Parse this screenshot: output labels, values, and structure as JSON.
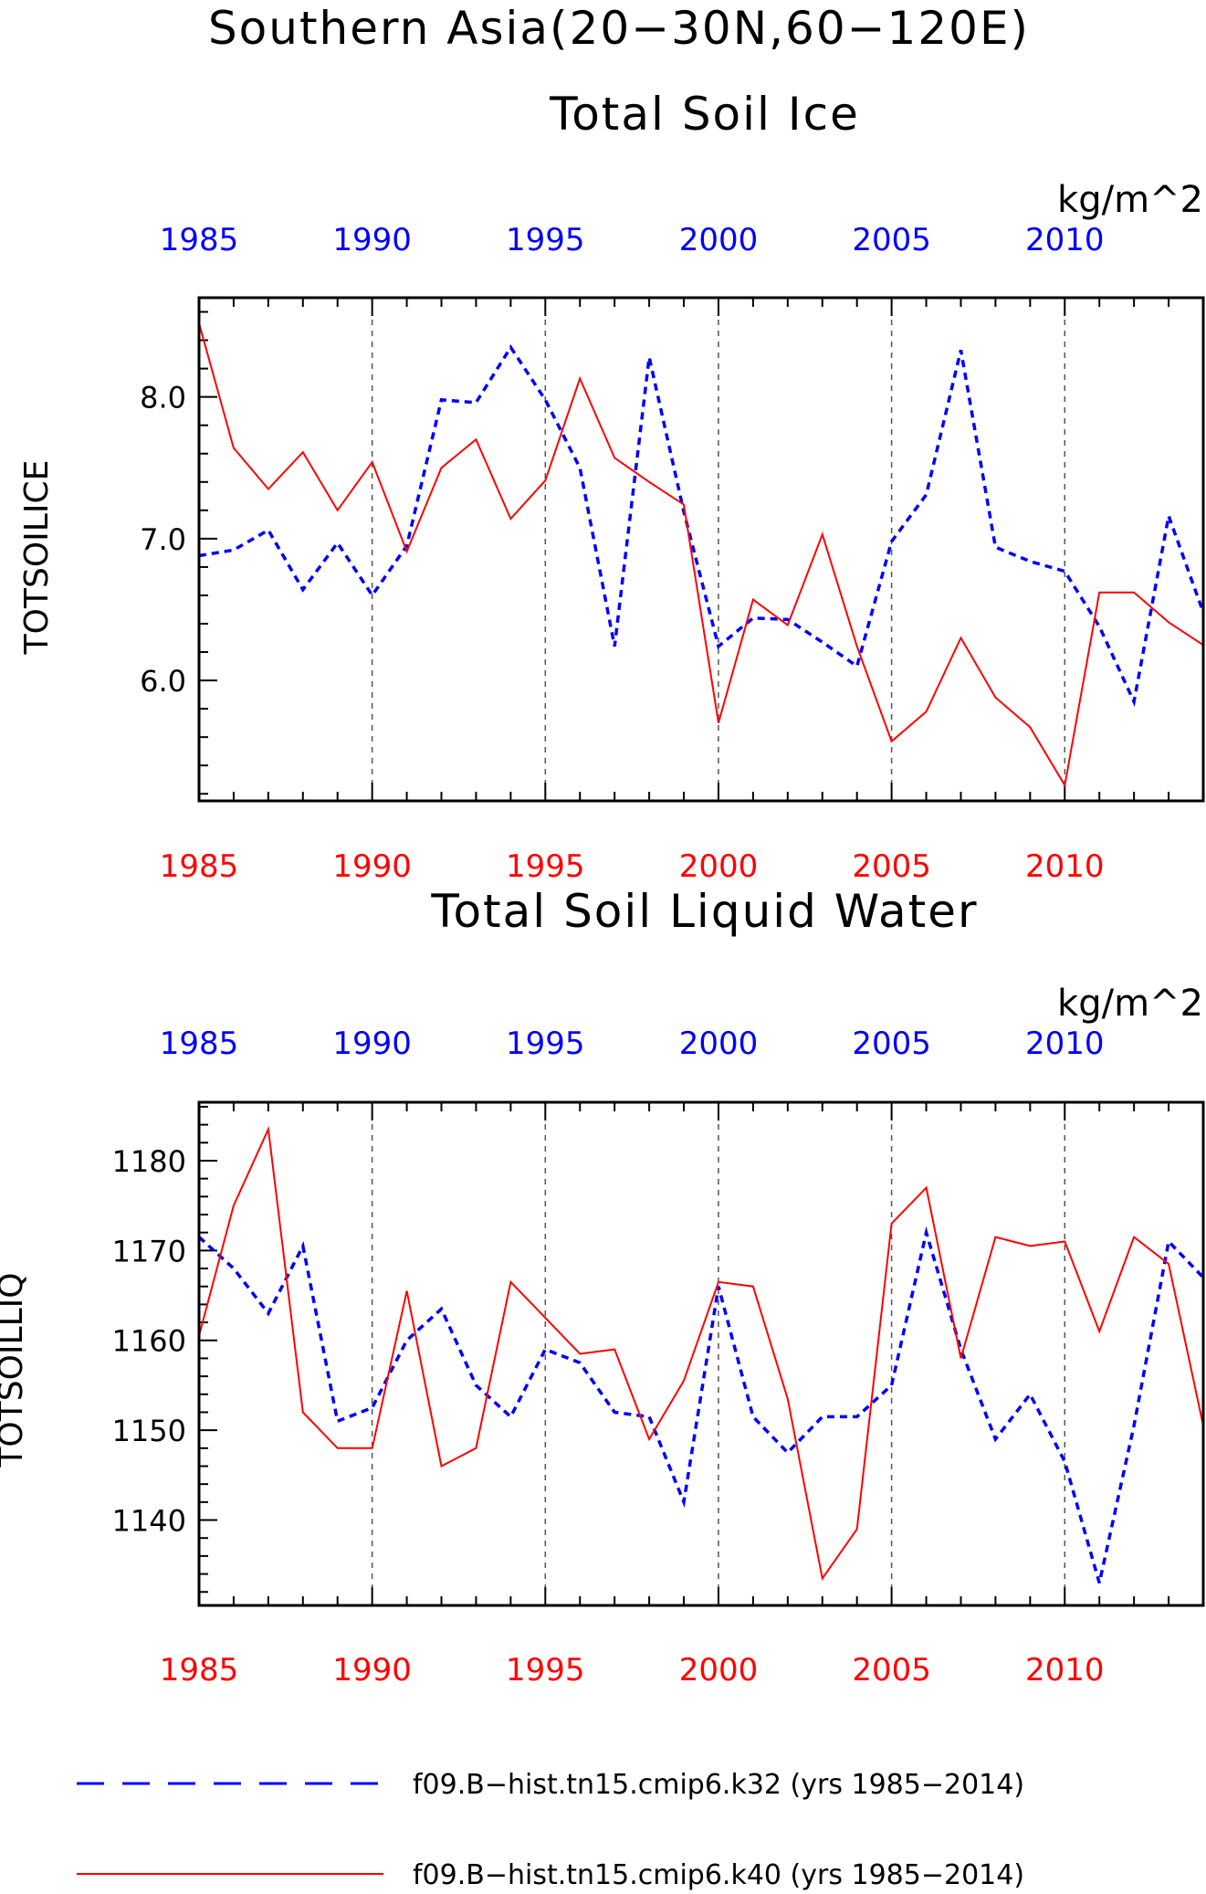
{
  "figure": {
    "title_line1": "Southern Asia(20−30N,60−120E)"
  },
  "chart_data": [
    {
      "type": "line",
      "title": "Total Soil Ice",
      "units": "kg/m^2",
      "ylabel": "TOTSOILICE",
      "xlim": [
        1985,
        2014
      ],
      "ylim": [
        5.15,
        8.7
      ],
      "x_ticks": [
        1985,
        1990,
        1995,
        2000,
        2005,
        2010
      ],
      "y_ticks": [
        "6.0",
        "7.0",
        "8.0"
      ],
      "y_tick_values": [
        6.0,
        7.0,
        8.0
      ],
      "x_vertical_gridlines": [
        1990,
        1995,
        2000,
        2005,
        2010
      ],
      "top_axis_color": "#0000ff",
      "bottom_axis_color": "#ff0000",
      "x": [
        1985,
        1986,
        1987,
        1988,
        1989,
        1990,
        1991,
        1992,
        1993,
        1994,
        1995,
        1996,
        1997,
        1998,
        1999,
        2000,
        2001,
        2002,
        2003,
        2004,
        2005,
        2006,
        2007,
        2008,
        2009,
        2010,
        2011,
        2012,
        2013,
        2014
      ],
      "series": [
        {
          "name": "f09.B−hist.tn15.cmip6.k32 (yrs 1985−2014)",
          "color": "#0000ff",
          "dash": "dashed",
          "values": [
            6.88,
            6.92,
            7.06,
            6.64,
            6.97,
            6.6,
            6.95,
            7.98,
            7.96,
            8.35,
            7.98,
            7.5,
            6.24,
            8.28,
            7.19,
            6.24,
            6.44,
            6.43,
            6.27,
            6.1,
            6.98,
            7.31,
            8.33,
            6.94,
            6.84,
            6.77,
            6.38,
            5.85,
            7.16,
            6.48
          ]
        },
        {
          "name": "f09.B−hist.tn15.cmip6.k40 (yrs 1985−2014)",
          "color": "#ff0000",
          "dash": "solid",
          "values": [
            8.52,
            7.64,
            7.35,
            7.61,
            7.2,
            7.54,
            6.91,
            7.5,
            7.7,
            7.14,
            7.41,
            8.13,
            7.57,
            7.4,
            7.24,
            5.7,
            6.57,
            6.39,
            7.03,
            6.24,
            5.57,
            5.78,
            6.3,
            5.88,
            5.67,
            5.26,
            6.62,
            6.62,
            6.41,
            6.25
          ]
        }
      ]
    },
    {
      "type": "line",
      "title": "Total Soil Liquid Water",
      "units": "kg/m^2",
      "ylabel": "TOTSOILLIQ",
      "xlim": [
        1985,
        2014
      ],
      "ylim": [
        1130.5,
        1186.5
      ],
      "x_ticks": [
        1985,
        1990,
        1995,
        2000,
        2005,
        2010
      ],
      "y_ticks": [
        "1140",
        "1150",
        "1160",
        "1170",
        "1180"
      ],
      "y_tick_values": [
        1140,
        1150,
        1160,
        1170,
        1180
      ],
      "x_vertical_gridlines": [
        1990,
        1995,
        2000,
        2005,
        2010
      ],
      "top_axis_color": "#0000ff",
      "bottom_axis_color": "#ff0000",
      "x": [
        1985,
        1986,
        1987,
        1988,
        1989,
        1990,
        1991,
        1992,
        1993,
        1994,
        1995,
        1996,
        1997,
        1998,
        1999,
        2000,
        2001,
        2002,
        2003,
        2004,
        2005,
        2006,
        2007,
        2008,
        2009,
        2010,
        2011,
        2012,
        2013,
        2014
      ],
      "series": [
        {
          "name": "f09.B−hist.tn15.cmip6.k32 (yrs 1985−2014)",
          "color": "#0000ff",
          "dash": "dashed",
          "values": [
            1171.5,
            1168.0,
            1163.0,
            1170.5,
            1151.0,
            1152.5,
            1160.0,
            1163.5,
            1155.0,
            1151.5,
            1159.0,
            1157.5,
            1152.0,
            1151.5,
            1142.0,
            1166.0,
            1151.5,
            1147.5,
            1151.5,
            1151.5,
            1155.0,
            1172.0,
            1159.0,
            1149.0,
            1154.0,
            1146.5,
            1133.0,
            1150.5,
            1171.0,
            1167.0
          ]
        },
        {
          "name": "f09.B−hist.tn15.cmip6.k40 (yrs 1985−2014)",
          "color": "#ff0000",
          "dash": "solid",
          "values": [
            1160.5,
            1175.0,
            1183.5,
            1152.0,
            1148.0,
            1148.0,
            1165.5,
            1146.0,
            1148.0,
            1166.5,
            1162.5,
            1158.5,
            1159.0,
            1149.0,
            1155.5,
            1166.5,
            1166.0,
            1153.5,
            1133.5,
            1139.0,
            1173.0,
            1177.0,
            1158.0,
            1171.5,
            1170.5,
            1171.0,
            1161.0,
            1171.5,
            1168.5,
            1150.5
          ]
        }
      ]
    }
  ],
  "legend": {
    "entries": [
      {
        "label": "f09.B−hist.tn15.cmip6.k32 (yrs 1985−2014)",
        "color": "#0000ff",
        "dash": "dashed"
      },
      {
        "label": "f09.B−hist.tn15.cmip6.k40 (yrs 1985−2014)",
        "color": "#ff0000",
        "dash": "solid"
      }
    ]
  }
}
